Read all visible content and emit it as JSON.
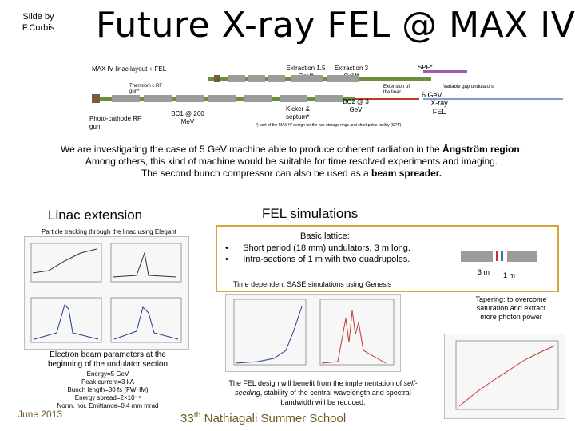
{
  "slide": {
    "credit": "Slide by F.Curbis",
    "title": "Future X-ray FEL @ MAX IV"
  },
  "layout_diagram": {
    "linac_label": "MAX IV linac layout + FEL",
    "thermionic_label": "Thermioni c RF gun*",
    "photocathode_label": "Photo-cathode RF gun",
    "bc1_label": "BC1 @ 260 MeV",
    "kicker_label": "Kicker & septum*",
    "extraction1_label": "Extraction 1.5 GeV*",
    "extraction2_label": "Extraction 3 GeV*",
    "bc2_label": "BC2 @ 3 GeV",
    "extension_label": "Extension of the linac",
    "spf_label": "SPF*",
    "undulators_label": "Variable gap undulators",
    "energy_label": "6 GeV",
    "xray_label": "X-ray FEL",
    "footnote": "*) part of the MAX IV design for the two storage rings and short pulse facility (SPF)",
    "colors": {
      "linac": "#6b8f3a",
      "section": "#9c9c9c",
      "gun": "#c0392b",
      "undulator": "#3a6fb0"
    }
  },
  "intro": {
    "line1_prefix": "We are investigating the case of 5 GeV machine able to  produce coherent radiation in the ",
    "line1_bold": "Ångström region",
    "line1_suffix": ".",
    "line2": "Among others, this kind of machine would be suitable for time resolved experiments and imaging.",
    "line3_prefix": "The second bunch compressor can also be used as a ",
    "line3_bold": "beam spreader."
  },
  "linac_extension": {
    "title": "Linac extension",
    "subtitle": "Particle tracking through the linac using Elegant",
    "params_title": "Electron beam parameters at the beginning of the undulator section",
    "params": [
      "Energy=5 GeV",
      "Peak current=3 kA",
      "Bunch length=30 fs (FWHM)",
      "Energy spread=2×10⁻⁴",
      "Norm. hor. Emittance=0.4 mm mrad"
    ]
  },
  "fel_simulations": {
    "title": "FEL simulations",
    "lattice_title": "Basic lattice:",
    "bullets": [
      "Short period (18 mm) undulators, 3 m long.",
      "Intra-sections of 1 m with two quadrupoles."
    ],
    "label_3m": "3 m",
    "label_1m": "1 m",
    "sase_text": "Time dependent SASE simulations using Genesis",
    "tapering_text": "Tapering: to overcome saturation and extract more photon power",
    "conclusion_prefix": "The FEL design will benefit from the implementation of ",
    "conclusion_italic": "self-seeding",
    "conclusion_suffix": ", stability of the central wavelength and spectral bandwidth will be reduced.",
    "colors": {
      "frame": "#d9a23c",
      "quad": "#c0392b"
    }
  },
  "footer": {
    "date": "June 2013",
    "school_num": "33",
    "school_sup": "th",
    "school_rest": " Nathiagali Summer School"
  }
}
